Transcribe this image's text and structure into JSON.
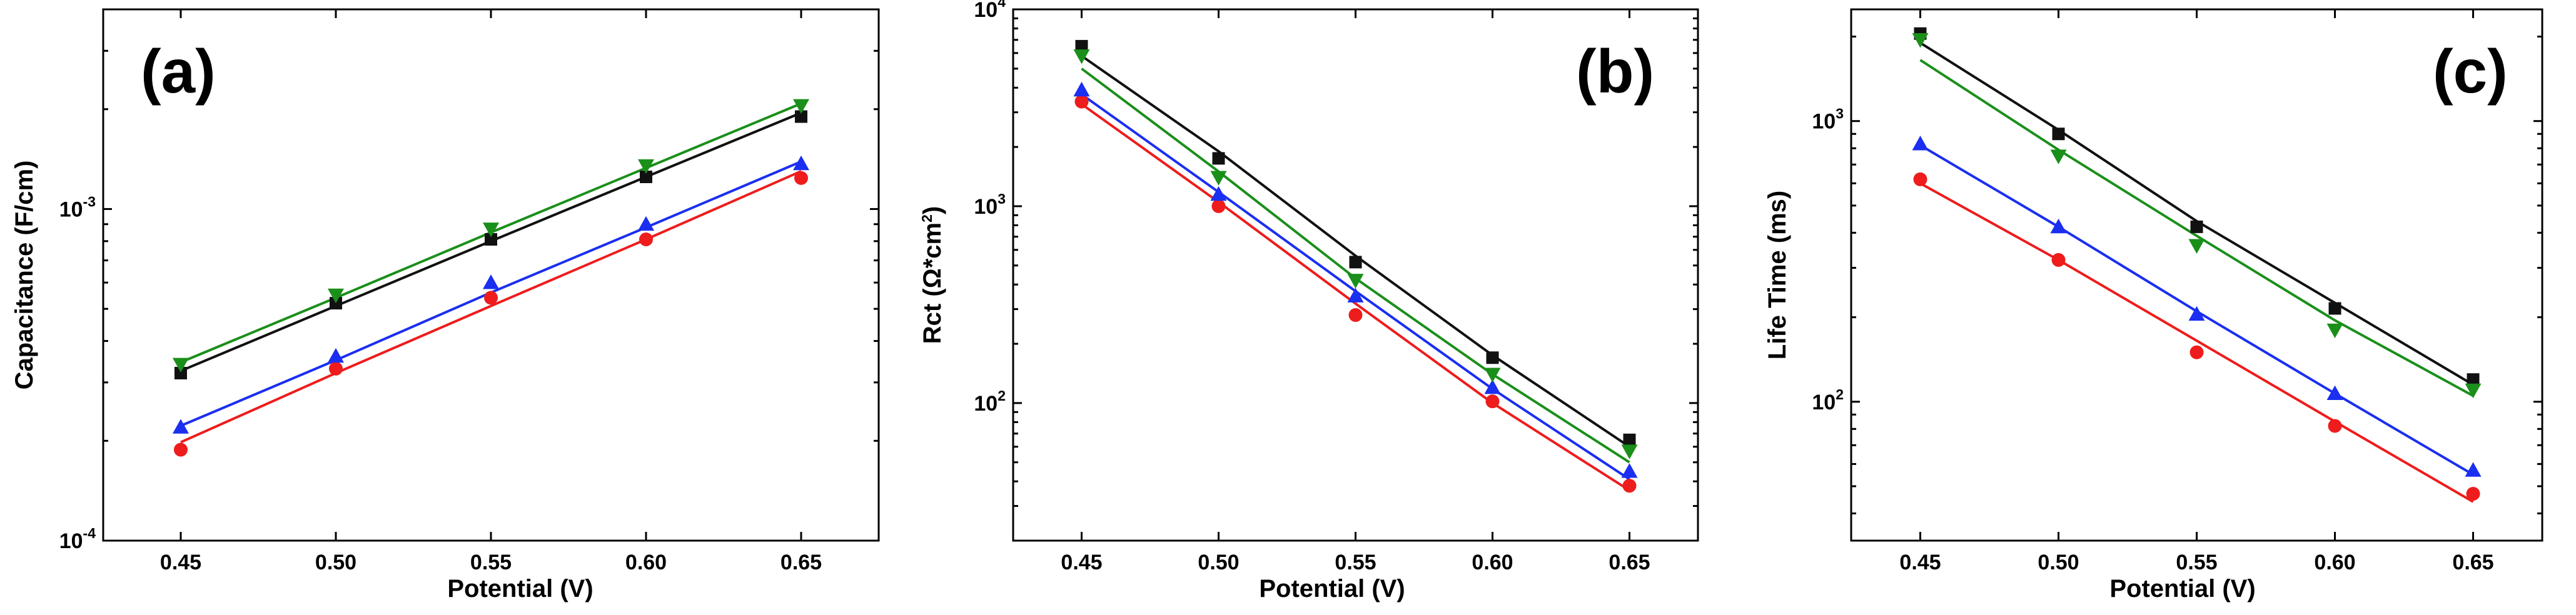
{
  "colors": {
    "black": "#111111",
    "red": "#ee1c1c",
    "blue": "#1a2ff0",
    "green": "#1a8f1a"
  },
  "chart_data": [
    {
      "type": "scatter",
      "panel_label": "(a)",
      "xlabel": "Potential (V)",
      "ylabel": "Capacitance (F/cm)",
      "yscale": "log",
      "xlim": [
        0.425,
        0.675
      ],
      "ylim": [
        0.0001,
        0.004
      ],
      "x_ticks": [
        "0.45",
        "0.50",
        "0.55",
        "0.60",
        "0.65"
      ],
      "y_ticks": [
        {
          "base": "10",
          "exp": "-4",
          "value": 0.0001
        },
        {
          "base": "10",
          "exp": "-3",
          "value": 0.001
        }
      ],
      "x": [
        0.45,
        0.5,
        0.55,
        0.6,
        0.65
      ],
      "series": [
        {
          "name": "black",
          "marker": "square",
          "color": "#111111",
          "values": [
            0.00032,
            0.00052,
            0.00081,
            0.00125,
            0.0019
          ],
          "fit": [
            0.000325,
            0.00051,
            0.0008,
            0.00125,
            0.00195
          ]
        },
        {
          "name": "red",
          "marker": "circle",
          "color": "#ee1c1c",
          "values": [
            0.000188,
            0.00033,
            0.00054,
            0.00081,
            0.00124
          ],
          "fit": [
            0.000198,
            0.00032,
            0.00051,
            0.00081,
            0.0013
          ]
        },
        {
          "name": "blue",
          "marker": "triangle-up",
          "color": "#1a2ff0",
          "values": [
            0.00022,
            0.00036,
            0.0006,
            0.0009,
            0.00137
          ],
          "fit": [
            0.000222,
            0.00035,
            0.00056,
            0.00088,
            0.00139
          ]
        },
        {
          "name": "green",
          "marker": "triangle-down",
          "color": "#1a8f1a",
          "values": [
            0.00034,
            0.00055,
            0.00087,
            0.00135,
            0.00205
          ],
          "fit": [
            0.000345,
            0.00054,
            0.00085,
            0.00133,
            0.00208
          ]
        }
      ]
    },
    {
      "type": "scatter",
      "panel_label": "(b)",
      "xlabel": "Potential (V)",
      "ylabel": "Rct (Ω*cm²)",
      "ylabel_parts": {
        "main": "Rct (Ω*cm",
        "sup": "2",
        "end": ")"
      },
      "yscale": "log",
      "xlim": [
        0.425,
        0.675
      ],
      "ylim": [
        20,
        10000
      ],
      "x_ticks": [
        "0.45",
        "0.50",
        "0.55",
        "0.60",
        "0.65"
      ],
      "y_ticks": [
        {
          "base": "10",
          "exp": "2",
          "value": 100
        },
        {
          "base": "10",
          "exp": "3",
          "value": 1000
        },
        {
          "base": "10",
          "exp": "4",
          "value": 10000
        }
      ],
      "x": [
        0.45,
        0.5,
        0.55,
        0.6,
        0.65
      ],
      "series": [
        {
          "name": "black",
          "marker": "square",
          "color": "#111111",
          "values": [
            6500,
            1750,
            520,
            170,
            65
          ],
          "fit": [
            5800,
            1900,
            560,
            175,
            60
          ]
        },
        {
          "name": "red",
          "marker": "circle",
          "color": "#ee1c1c",
          "values": [
            3400,
            1000,
            280,
            102,
            38
          ],
          "fit": [
            3300,
            1050,
            320,
            100,
            36
          ]
        },
        {
          "name": "blue",
          "marker": "triangle-up",
          "color": "#1a2ff0",
          "values": [
            3900,
            1150,
            350,
            120,
            45
          ],
          "fit": [
            3700,
            1180,
            370,
            118,
            41
          ]
        },
        {
          "name": "green",
          "marker": "triangle-down",
          "color": "#1a8f1a",
          "values": [
            5800,
            1400,
            420,
            140,
            57
          ],
          "fit": [
            5000,
            1500,
            430,
            140,
            50
          ]
        }
      ]
    },
    {
      "type": "scatter",
      "panel_label": "(c)",
      "xlabel": "Potential (V)",
      "ylabel": "Life Time (ms)",
      "yscale": "log",
      "xlim": [
        0.425,
        0.675
      ],
      "ylim": [
        32,
        2500
      ],
      "x_ticks": [
        "0.45",
        "0.50",
        "0.55",
        "0.60",
        "0.65"
      ],
      "y_ticks": [
        {
          "base": "10",
          "exp": "2",
          "value": 100
        },
        {
          "base": "10",
          "exp": "3",
          "value": 1000
        }
      ],
      "x": [
        0.45,
        0.5,
        0.55,
        0.6,
        0.65
      ],
      "series": [
        {
          "name": "black",
          "marker": "square",
          "color": "#111111",
          "values": [
            2050,
            900,
            420,
            215,
            120
          ],
          "fit": [
            1900,
            930,
            440,
            225,
            115
          ]
        },
        {
          "name": "red",
          "marker": "circle",
          "color": "#ee1c1c",
          "values": [
            620,
            320,
            150,
            82,
            47
          ],
          "fit": [
            600,
            320,
            165,
            85,
            44
          ]
        },
        {
          "name": "blue",
          "marker": "triangle-up",
          "color": "#1a2ff0",
          "values": [
            830,
            420,
            205,
            107,
            57
          ],
          "fit": [
            820,
            420,
            210,
            107,
            55
          ]
        },
        {
          "name": "green",
          "marker": "triangle-down",
          "color": "#1a8f1a",
          "values": [
            1950,
            750,
            360,
            180,
            110
          ],
          "fit": [
            1650,
            790,
            390,
            195,
            105
          ]
        }
      ]
    }
  ]
}
